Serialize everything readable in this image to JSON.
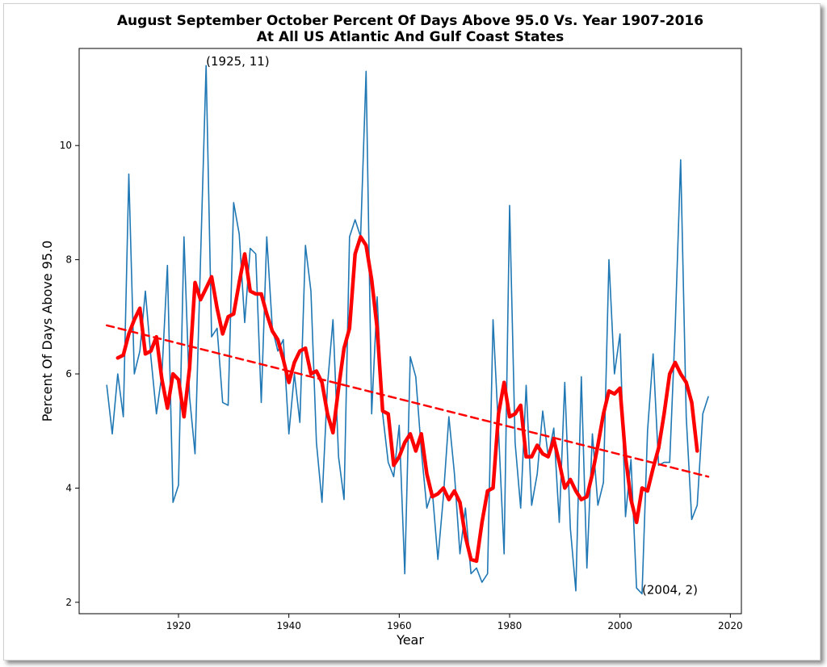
{
  "chart_data": {
    "type": "line",
    "title_line1": "August September October Percent Of Days Above 95.0 Vs. Year 1907-2016",
    "title_line2": "At All US Atlantic And Gulf Coast States",
    "xlabel": "Year",
    "ylabel": "Percent Of Days Above 95.0",
    "xlim": [
      1902,
      2022
    ],
    "ylim": [
      1.8,
      11.7
    ],
    "xticks": [
      1920,
      1940,
      1960,
      1980,
      2000,
      2020
    ],
    "yticks": [
      2,
      4,
      6,
      8,
      10
    ],
    "grid": false,
    "colors": {
      "annual": "#1f77b4",
      "smooth": "#ff0000",
      "trend": "#ff0000"
    },
    "series": [
      {
        "kind": "annual",
        "x": [
          1907,
          1908,
          1909,
          1910,
          1911,
          1912,
          1913,
          1914,
          1915,
          1916,
          1917,
          1918,
          1919,
          1920,
          1921,
          1922,
          1923,
          1924,
          1925,
          1926,
          1927,
          1928,
          1929,
          1930,
          1931,
          1932,
          1933,
          1934,
          1935,
          1936,
          1937,
          1938,
          1939,
          1940,
          1941,
          1942,
          1943,
          1944,
          1945,
          1946,
          1947,
          1948,
          1949,
          1950,
          1951,
          1952,
          1953,
          1954,
          1955,
          1956,
          1957,
          1958,
          1959,
          1960,
          1961,
          1962,
          1963,
          1964,
          1965,
          1966,
          1967,
          1968,
          1969,
          1970,
          1971,
          1972,
          1973,
          1974,
          1975,
          1976,
          1977,
          1978,
          1979,
          1980,
          1981,
          1982,
          1983,
          1984,
          1985,
          1986,
          1987,
          1988,
          1989,
          1990,
          1991,
          1992,
          1993,
          1994,
          1995,
          1996,
          1997,
          1998,
          1999,
          2000,
          2001,
          2002,
          2003,
          2004,
          2005,
          2006,
          2007,
          2008,
          2009,
          2010,
          2011,
          2012,
          2013,
          2014,
          2015,
          2016
        ],
        "y": [
          5.8,
          4.95,
          6.0,
          5.25,
          9.5,
          6.0,
          6.4,
          7.45,
          6.3,
          5.3,
          6.0,
          7.9,
          3.75,
          4.05,
          8.4,
          5.6,
          4.6,
          8.0,
          11.4,
          6.65,
          6.8,
          5.5,
          5.45,
          9.0,
          8.45,
          6.9,
          8.2,
          8.1,
          5.5,
          8.4,
          6.8,
          6.4,
          6.6,
          4.95,
          6.0,
          5.15,
          8.25,
          7.45,
          4.8,
          3.75,
          5.8,
          6.95,
          4.55,
          3.8,
          8.4,
          8.7,
          8.4,
          11.3,
          5.3,
          7.35,
          5.3,
          4.45,
          4.2,
          5.1,
          2.5,
          6.3,
          5.95,
          4.65,
          3.65,
          3.95,
          2.75,
          3.85,
          5.25,
          4.25,
          2.85,
          3.65,
          2.5,
          2.6,
          2.35,
          2.5,
          6.95,
          5.0,
          2.85,
          8.95,
          4.8,
          3.65,
          5.8,
          3.7,
          4.25,
          5.35,
          4.55,
          5.05,
          3.4,
          5.85,
          3.3,
          2.2,
          5.95,
          2.6,
          4.95,
          3.7,
          4.1,
          8.0,
          6.0,
          6.7,
          3.5,
          4.5,
          2.25,
          2.15,
          5.0,
          6.35,
          4.4,
          4.45,
          4.45,
          6.8,
          9.75,
          5.25,
          3.45,
          3.7,
          5.3,
          5.6
        ]
      },
      {
        "kind": "smooth",
        "x": [
          1909,
          1910,
          1911,
          1912,
          1913,
          1914,
          1915,
          1916,
          1917,
          1918,
          1919,
          1920,
          1921,
          1922,
          1923,
          1924,
          1925,
          1926,
          1927,
          1928,
          1929,
          1930,
          1931,
          1932,
          1933,
          1934,
          1935,
          1936,
          1937,
          1938,
          1939,
          1940,
          1941,
          1942,
          1943,
          1944,
          1945,
          1946,
          1947,
          1948,
          1949,
          1950,
          1951,
          1952,
          1953,
          1954,
          1955,
          1956,
          1957,
          1958,
          1959,
          1960,
          1961,
          1962,
          1963,
          1964,
          1965,
          1966,
          1967,
          1968,
          1969,
          1970,
          1971,
          1972,
          1973,
          1974,
          1975,
          1976,
          1977,
          1978,
          1979,
          1980,
          1981,
          1982,
          1983,
          1984,
          1985,
          1986,
          1987,
          1988,
          1989,
          1990,
          1991,
          1992,
          1993,
          1994,
          1995,
          1996,
          1997,
          1998,
          1999,
          2000,
          2001,
          2002,
          2003,
          2004,
          2005,
          2006,
          2007,
          2008,
          2009,
          2010,
          2011,
          2012,
          2013,
          2014
        ],
        "y": [
          6.28,
          6.33,
          6.7,
          6.95,
          7.15,
          6.35,
          6.4,
          6.65,
          5.9,
          5.4,
          6.0,
          5.9,
          5.25,
          6.1,
          7.6,
          7.3,
          7.5,
          7.7,
          7.15,
          6.7,
          7.0,
          7.05,
          7.6,
          8.1,
          7.45,
          7.4,
          7.4,
          7.05,
          6.75,
          6.6,
          6.25,
          5.85,
          6.2,
          6.4,
          6.45,
          6.0,
          6.05,
          5.85,
          5.3,
          4.97,
          5.75,
          6.45,
          6.8,
          8.1,
          8.4,
          8.25,
          7.65,
          6.8,
          5.35,
          5.3,
          4.4,
          4.55,
          4.8,
          4.95,
          4.65,
          4.95,
          4.25,
          3.85,
          3.9,
          4.0,
          3.8,
          3.95,
          3.75,
          3.15,
          2.75,
          2.72,
          3.4,
          3.95,
          4.0,
          5.3,
          5.85,
          5.25,
          5.3,
          5.45,
          4.55,
          4.55,
          4.75,
          4.6,
          4.55,
          4.85,
          4.45,
          4.0,
          4.15,
          3.95,
          3.8,
          3.85,
          4.25,
          4.75,
          5.3,
          5.7,
          5.65,
          5.75,
          4.55,
          3.8,
          3.4,
          4.0,
          3.95,
          4.35,
          4.7,
          5.3,
          6.0,
          6.2,
          6.0,
          5.85,
          5.5,
          4.65
        ]
      },
      {
        "kind": "trend",
        "x": [
          1907,
          2016
        ],
        "y": [
          6.85,
          4.2
        ]
      }
    ],
    "annotations": [
      {
        "text": "(1925, 11)",
        "x": 1925,
        "y": 11.4
      },
      {
        "text": "(2004, 2)",
        "x": 2004,
        "y": 2.15
      }
    ]
  }
}
